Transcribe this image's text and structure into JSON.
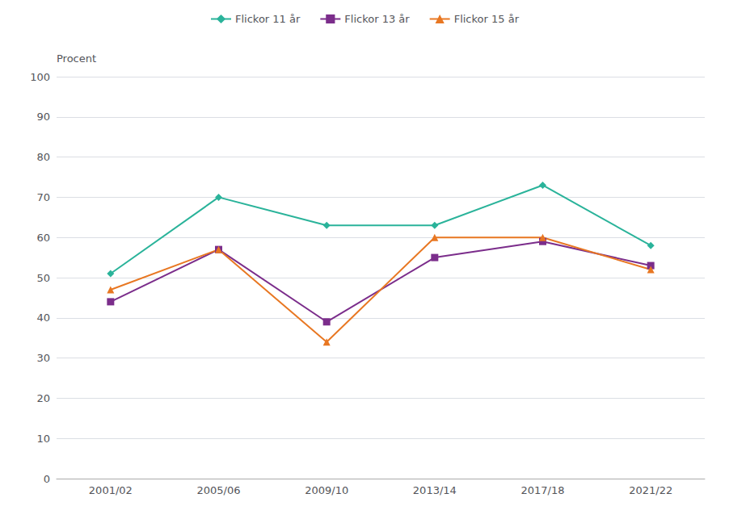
{
  "chart_data": {
    "type": "line",
    "ylabel": "Procent",
    "categories": [
      "2001/02",
      "2005/06",
      "2009/10",
      "2013/14",
      "2017/18",
      "2021/22"
    ],
    "series": [
      {
        "name": "Flickor 11 år",
        "color": "#2ab39a",
        "marker": "diamond",
        "values": [
          51,
          70,
          63,
          63,
          73,
          58
        ]
      },
      {
        "name": "Flickor 13 år",
        "color": "#7b2d8b",
        "marker": "square",
        "values": [
          44,
          57,
          39,
          55,
          59,
          53
        ]
      },
      {
        "name": "Flickor 15 år",
        "color": "#e87722",
        "marker": "triangle",
        "values": [
          47,
          57,
          34,
          60,
          60,
          52
        ]
      }
    ],
    "ylim": [
      0,
      100
    ],
    "yticks": [
      0,
      10,
      20,
      30,
      40,
      50,
      60,
      70,
      80,
      90,
      100
    ],
    "grid": true,
    "legend": "top"
  }
}
